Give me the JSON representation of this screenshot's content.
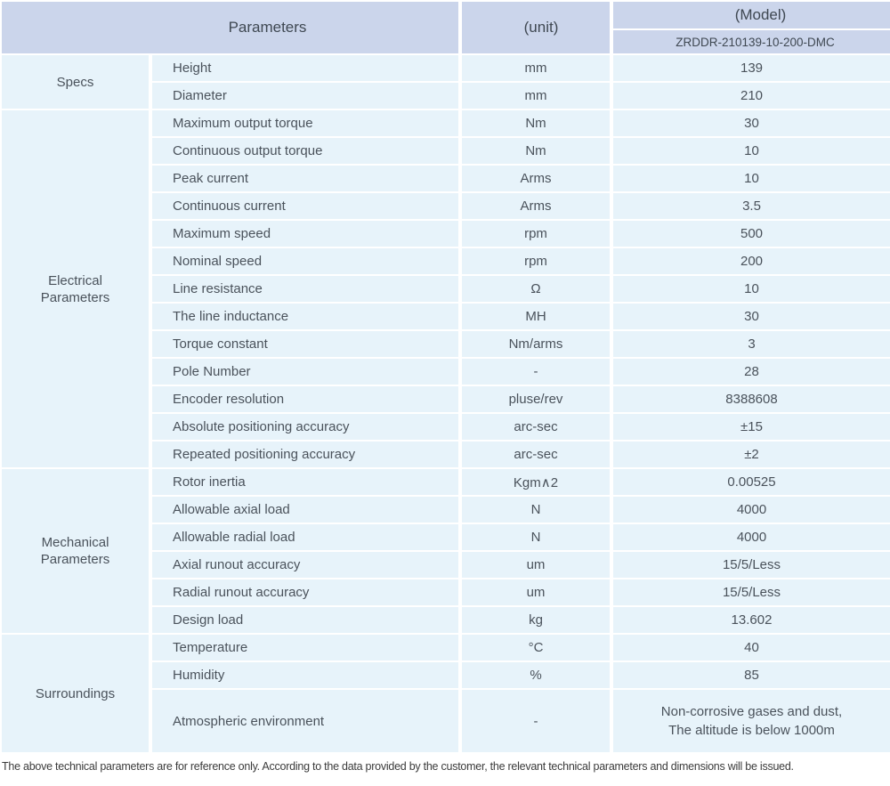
{
  "colors": {
    "header_bg": "#cbd5eb",
    "cell_bg": "#e7f3fa",
    "separator": "#ffffff",
    "text": "#4a525b"
  },
  "header": {
    "parameters_label": "Parameters",
    "unit_label": "(unit)",
    "model_label": "(Model)",
    "model_code": "ZRDDR-210139-10-200-DMC"
  },
  "sections": [
    {
      "label": "Specs",
      "rows": [
        {
          "param": "Height",
          "unit": "mm",
          "value": "139"
        },
        {
          "param": "Diameter",
          "unit": "mm",
          "value": "210"
        }
      ]
    },
    {
      "label": "Electrical\nParameters",
      "rows": [
        {
          "param": "Maximum output torque",
          "unit": "Nm",
          "value": "30"
        },
        {
          "param": "Continuous output torque",
          "unit": "Nm",
          "value": "10"
        },
        {
          "param": "Peak current",
          "unit": "Arms",
          "value": "10"
        },
        {
          "param": "Continuous current",
          "unit": "Arms",
          "value": "3.5"
        },
        {
          "param": "Maximum speed",
          "unit": "rpm",
          "value": "500"
        },
        {
          "param": "Nominal speed",
          "unit": "rpm",
          "value": "200"
        },
        {
          "param": "Line resistance",
          "unit": "Ω",
          "value": "10"
        },
        {
          "param": "The line inductance",
          "unit": "MH",
          "value": "30"
        },
        {
          "param": "Torque constant",
          "unit": "Nm/arms",
          "value": "3"
        },
        {
          "param": "Pole Number",
          "unit": "-",
          "value": "28"
        },
        {
          "param": "Encoder resolution",
          "unit": "pluse/rev",
          "value": "8388608"
        },
        {
          "param": "Absolute positioning accuracy",
          "unit": "arc-sec",
          "value": "±15"
        },
        {
          "param": "Repeated positioning accuracy",
          "unit": "arc-sec",
          "value": "±2"
        }
      ]
    },
    {
      "label": "Mechanical\nParameters",
      "rows": [
        {
          "param": "Rotor inertia",
          "unit": "Kgm∧2",
          "value": "0.00525"
        },
        {
          "param": "Allowable axial load",
          "unit": "N",
          "value": "4000"
        },
        {
          "param": "Allowable radial load",
          "unit": "N",
          "value": "4000"
        },
        {
          "param": "Axial runout accuracy",
          "unit": "um",
          "value": "15/5/Less"
        },
        {
          "param": "Radial runout accuracy",
          "unit": "um",
          "value": "15/5/Less"
        },
        {
          "param": "Design load",
          "unit": "kg",
          "value": "13.602"
        }
      ]
    },
    {
      "label": "Surroundings",
      "rows": [
        {
          "param": "Temperature",
          "unit": "°C",
          "value": "40"
        },
        {
          "param": "Humidity",
          "unit": "%",
          "value": "85"
        },
        {
          "param": "Atmospheric environment",
          "unit": "-",
          "value": "Non-corrosive gases and dust,\nThe altitude is below 1000m"
        }
      ]
    }
  ],
  "footer": {
    "note": "The above technical parameters are for reference only. According to the data provided by the customer, the relevant technical parameters and dimensions will be issued."
  }
}
